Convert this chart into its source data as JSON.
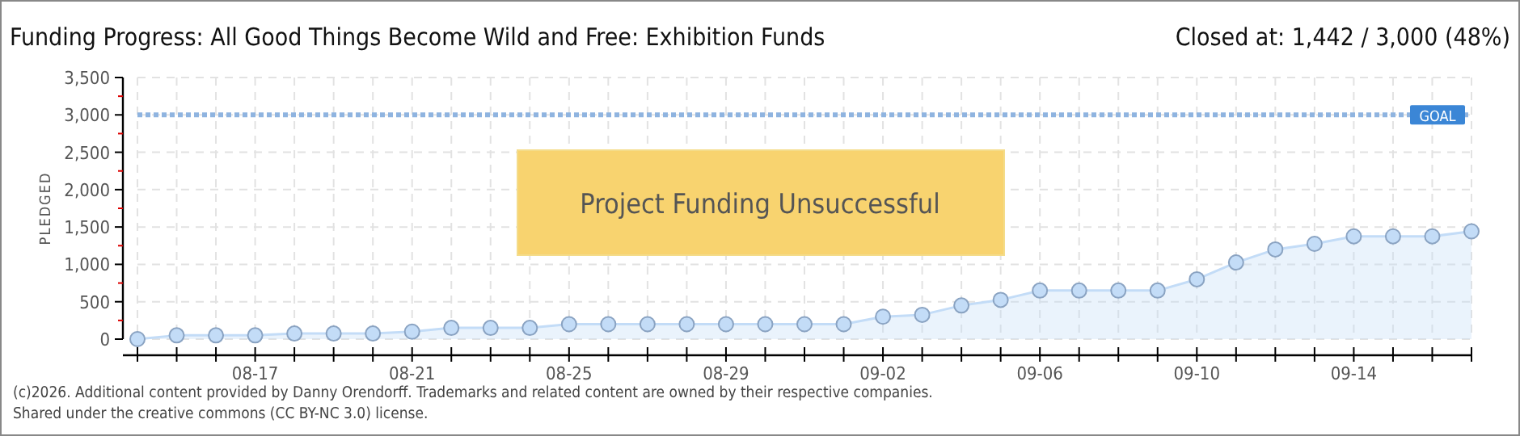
{
  "chart_data": {
    "type": "area",
    "title": "Funding Progress: All Good Things Become Wild and Free: Exhibition Funds",
    "subtitle": "Closed at:  1,442 /  3,000 (48%)",
    "ylabel": "PLEDGED",
    "x": [
      "--08-14",
      "--08-15",
      "--08-16",
      "--08-17",
      "--08-18",
      "--08-19",
      "--08-20",
      "--08-21",
      "--08-22",
      "--08-23",
      "--08-24",
      "--08-25",
      "--08-26",
      "--08-27",
      "--08-28",
      "--08-29",
      "--08-30",
      "--08-31",
      "--09-01",
      "--09-02",
      "--09-03",
      "--09-04",
      "--09-05",
      "--09-06",
      "--09-07",
      "--09-08",
      "--09-09",
      "--09-10",
      "--09-11",
      "--09-12",
      "--09-13",
      "--09-14",
      "--09-15",
      "--09-16",
      "--09-17"
    ],
    "series": [
      {
        "color": "#c3dcf7",
        "values": [
          0,
          50,
          50,
          50,
          75,
          75,
          75,
          100,
          150,
          150,
          150,
          200,
          200,
          200,
          200,
          200,
          200,
          200,
          200,
          300,
          325,
          450,
          525,
          650,
          650,
          650,
          650,
          800,
          1025,
          1200,
          1275,
          1375,
          1375,
          1375,
          1442
        ]
      }
    ],
    "xlim": [
      "--08-14",
      "--09-17"
    ],
    "xticks": [
      {
        "value": "--08-14",
        "label": null
      },
      {
        "value": "--08-15",
        "label": null
      },
      {
        "value": "--08-16",
        "label": null
      },
      {
        "value": "--08-17",
        "label": "08-17"
      },
      {
        "value": "--08-18",
        "label": null
      },
      {
        "value": "--08-19",
        "label": null
      },
      {
        "value": "--08-20",
        "label": null
      },
      {
        "value": "--08-21",
        "label": "08-21"
      },
      {
        "value": "--08-22",
        "label": null
      },
      {
        "value": "--08-23",
        "label": null
      },
      {
        "value": "--08-24",
        "label": null
      },
      {
        "value": "--08-25",
        "label": "08-25"
      },
      {
        "value": "--08-26",
        "label": null
      },
      {
        "value": "--08-27",
        "label": null
      },
      {
        "value": "--08-28",
        "label": null
      },
      {
        "value": "--08-29",
        "label": "08-29"
      },
      {
        "value": "--08-30",
        "label": null
      },
      {
        "value": "--08-31",
        "label": null
      },
      {
        "value": "--09-01",
        "label": null
      },
      {
        "value": "--09-02",
        "label": "09-02"
      },
      {
        "value": "--09-03",
        "label": null
      },
      {
        "value": "--09-04",
        "label": null
      },
      {
        "value": "--09-05",
        "label": null
      },
      {
        "value": "--09-06",
        "label": "09-06"
      },
      {
        "value": "--09-07",
        "label": null
      },
      {
        "value": "--09-08",
        "label": null
      },
      {
        "value": "--09-09",
        "label": null
      },
      {
        "value": "--09-10",
        "label": "09-10"
      },
      {
        "value": "--09-11",
        "label": null
      },
      {
        "value": "--09-12",
        "label": null
      },
      {
        "value": "--09-13",
        "label": null
      },
      {
        "value": "--09-14",
        "label": "09-14"
      },
      {
        "value": "--09-15",
        "label": null
      },
      {
        "value": "--09-16",
        "label": null
      },
      {
        "value": "--09-17",
        "label": null
      }
    ],
    "ylim": [
      0,
      3500
    ],
    "yticks": [
      0,
      {
        "value": 250,
        "label": null
      },
      {
        "value": 500,
        "label": "500"
      },
      {
        "value": 750,
        "label": null
      },
      {
        "value": 1000,
        "label": "1,000"
      },
      {
        "value": 1250,
        "label": null
      },
      {
        "value": 1500,
        "label": "1,500"
      },
      {
        "value": 1750,
        "label": null
      },
      {
        "value": 2000,
        "label": "2,000"
      },
      {
        "value": 2250,
        "label": null
      },
      {
        "value": 2500,
        "label": "2,500"
      },
      {
        "value": 2750,
        "label": null
      },
      {
        "value": 3000,
        "label": "3,000"
      },
      {
        "value": 3250,
        "label": null
      },
      {
        "value": 3500,
        "label": "3,500"
      }
    ],
    "ref_lines": [
      {
        "axis": "y",
        "value": 3000,
        "label": "GOAL",
        "color": "#8fb4e0",
        "line_style": "dotted"
      }
    ],
    "grid": true,
    "marker": "circle",
    "annotations": [
      "Project Funding Unsuccessful",
      "(c)2026. Additional content provided by Danny Orendorff. Trademarks and related content are owned by their respective companies.",
      "Shared under the creative commons (CC BY-NC 3.0) license."
    ]
  }
}
